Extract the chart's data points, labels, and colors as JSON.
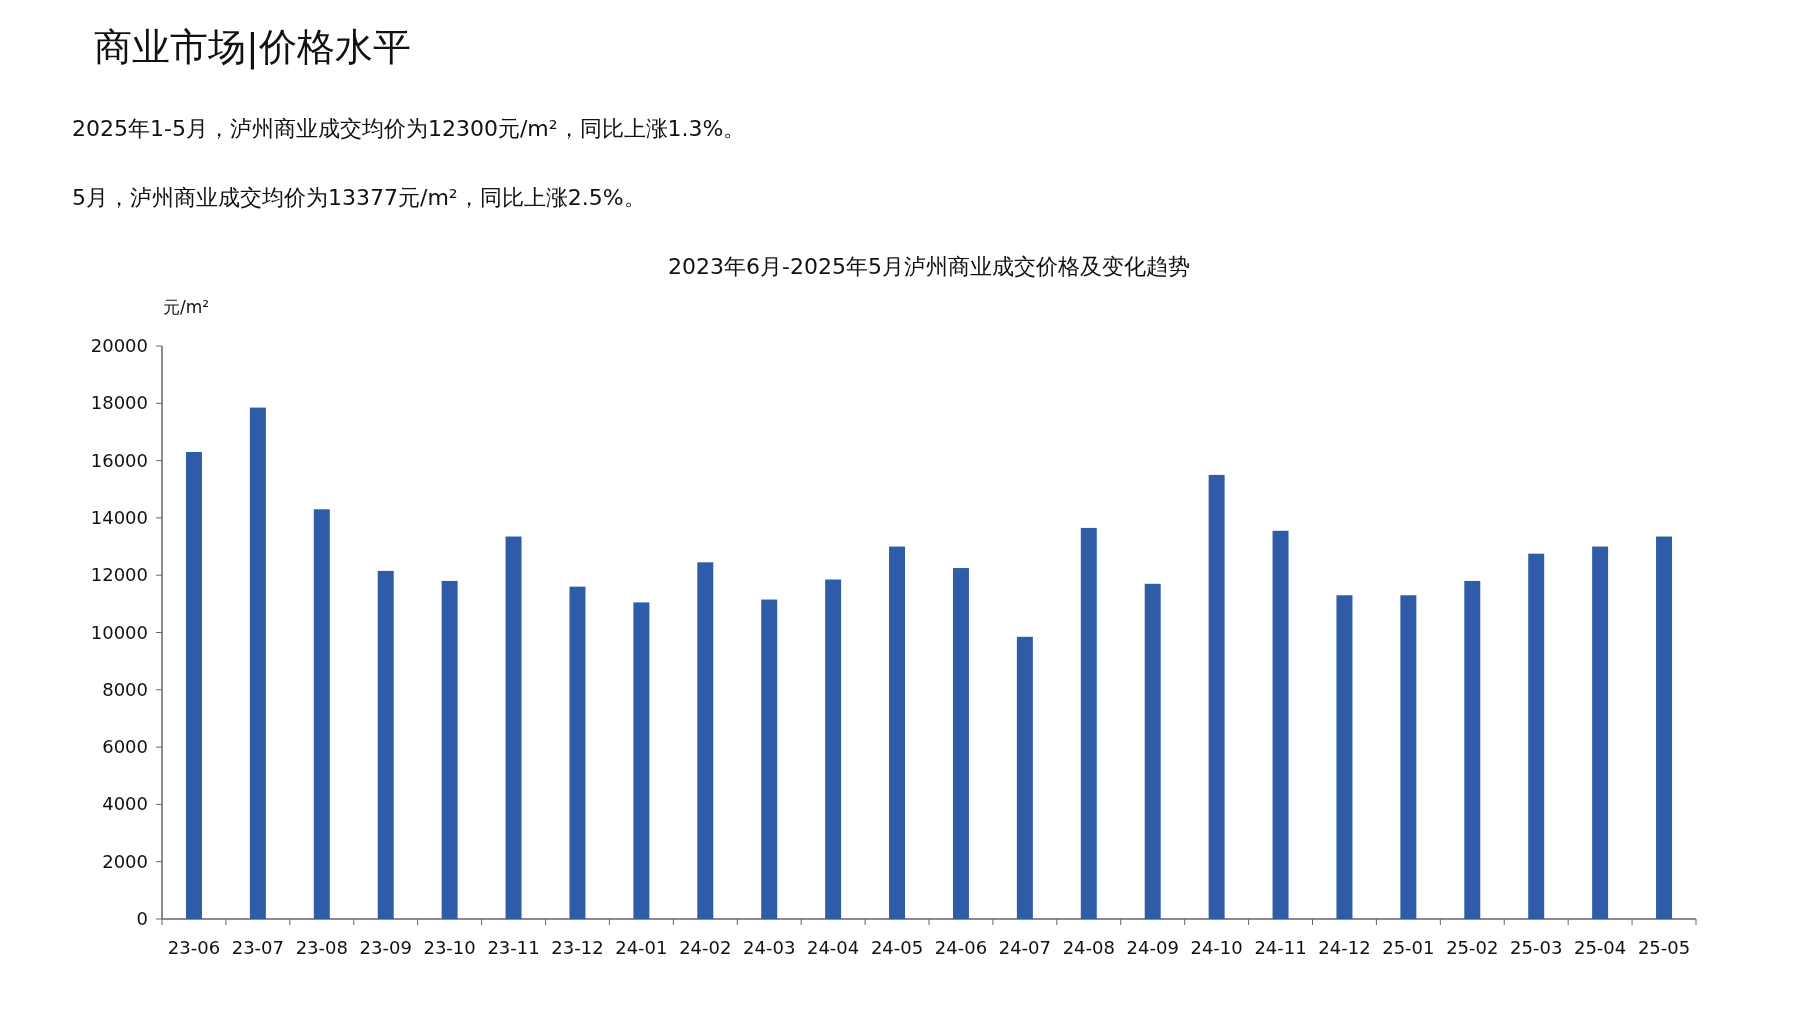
{
  "chart_data": {
    "type": "bar",
    "title": "2023年6月-2025年5月泸州商业成交价格及变化趋势",
    "ylabel": "元/m²",
    "annotations": [
      "商业市场|价格水平",
      "2025年1-5月，泸州商业成交均价为12300元/m²，同比上涨1.3%。",
      "5月，泸州商业成交均价为13377元/m²，同比上涨2.5%。"
    ],
    "categories": [
      "23-06",
      "23-07",
      "23-08",
      "23-09",
      "23-10",
      "23-11",
      "23-12",
      "24-01",
      "24-02",
      "24-03",
      "24-04",
      "24-05",
      "24-06",
      "24-07",
      "24-08",
      "24-09",
      "24-10",
      "24-11",
      "24-12",
      "25-01",
      "25-02",
      "25-03",
      "25-04",
      "25-05"
    ],
    "values": [
      16300,
      17850,
      14300,
      12150,
      11800,
      13350,
      11600,
      11050,
      12450,
      11150,
      11850,
      13000,
      12250,
      9850,
      13650,
      11700,
      15500,
      13550,
      11300,
      11300,
      11800,
      12750,
      13000,
      13350
    ],
    "color": "#2e5ca8",
    "ylim": [
      0,
      20000
    ],
    "yticks": [
      0,
      2000,
      4000,
      6000,
      8000,
      10000,
      12000,
      14000,
      16000,
      18000,
      20000
    ]
  }
}
